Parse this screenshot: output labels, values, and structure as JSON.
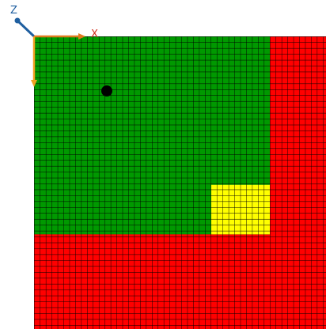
{
  "axes": {
    "z": "Z",
    "x": "X"
  }
}
